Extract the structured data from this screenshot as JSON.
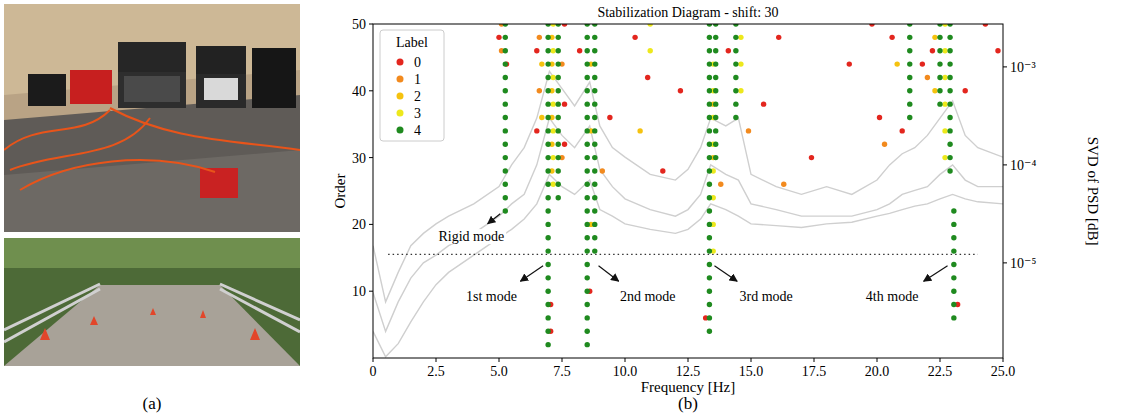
{
  "panel_labels": [
    "(a)",
    "(b)"
  ],
  "chart_data": {
    "type": "scatter",
    "title": "Stabilization Diagram - shift: 30",
    "xlabel": "Frequency [Hz]",
    "ylabel": "Order",
    "y2label": "SVD of PSD [dB]",
    "xlim": [
      0,
      25
    ],
    "ylim": [
      0,
      50
    ],
    "y2lim": [
      1.07e-06,
      0.00274
    ],
    "xticks": [
      0,
      2.5,
      {
        "value": 5,
        "label": "5.0"
      },
      7.5,
      {
        "value": 10,
        "label": "10.0"
      },
      12.5,
      {
        "value": 15,
        "label": "15.0"
      },
      17.5,
      {
        "value": 20,
        "label": "20.0"
      },
      22.5,
      {
        "value": 25,
        "label": "25.0"
      }
    ],
    "yticks": [
      10,
      20,
      30,
      40,
      50
    ],
    "y2ticks": [
      {
        "value": 1e-05,
        "label": "10⁻⁵"
      },
      {
        "value": 0.0001,
        "label": "10⁻⁴"
      },
      {
        "value": 0.001,
        "label": "10⁻³"
      }
    ],
    "log": "y2",
    "grid": false,
    "legend": "upper left",
    "legend_title": "Label",
    "annotations": [
      "Rigid mode",
      "1st mode",
      "2nd mode",
      "3rd mode",
      "4th mode"
    ],
    "hline": {
      "y": 15.5,
      "x": [
        0.6,
        24.0
      ],
      "line_style": "dotted"
    },
    "series": [
      {
        "name": "0",
        "color": "#e3261e",
        "marker": "circle",
        "x": [
          5.0,
          5.3,
          6.5,
          6.5,
          7.05,
          7.05,
          7.6,
          7.6,
          7.6,
          8.2,
          8.6,
          9.4,
          10.4,
          10.9,
          11.5,
          12.2,
          13.2,
          14.1,
          15.5,
          16.1,
          17.4,
          18.9,
          19.8,
          20.1,
          20.6,
          21.0,
          21.8,
          22.2,
          23.2,
          23.5,
          24.3,
          24.8
        ],
        "values": [
          48,
          44,
          34,
          46,
          4,
          8,
          32,
          38,
          50,
          46,
          10,
          36,
          48,
          42,
          28,
          40,
          6,
          46,
          38,
          48,
          30,
          44,
          50,
          36,
          48,
          34,
          44,
          46,
          8,
          40,
          50,
          46
        ]
      },
      {
        "name": "1",
        "color": "#f28a1e",
        "marker": "circle",
        "x": [
          5.1,
          5.1,
          6.6,
          6.6,
          7.5,
          7.5,
          9.1,
          13.8,
          14.9,
          16.3,
          20.3,
          22.0
        ],
        "values": [
          46,
          50,
          40,
          48,
          30,
          44,
          28,
          26,
          34,
          26,
          32,
          42
        ]
      },
      {
        "name": "2",
        "color": "#f5c20f",
        "marker": "circle",
        "x": [
          6.7,
          6.7,
          7.1,
          7.1,
          7.1,
          7.1,
          7.1,
          7.1,
          8.65,
          8.65,
          8.65,
          10.6,
          13.5,
          13.5,
          20.8,
          22.3,
          22.3
        ],
        "values": [
          36,
          44,
          28,
          32,
          36,
          40,
          44,
          48,
          20,
          34,
          44,
          34,
          30,
          38,
          44,
          40,
          48
        ]
      },
      {
        "name": "3",
        "color": "#ede81c",
        "marker": "circle",
        "x": [
          7.15,
          7.15,
          7.15,
          7.15,
          7.15,
          7.15,
          7.15,
          11.0,
          11.0,
          13.5,
          13.5,
          13.5,
          13.5,
          13.5,
          13.5,
          13.5,
          13.5,
          14.6,
          14.6,
          14.6,
          22.7,
          22.7,
          22.7,
          22.7,
          22.7,
          22.7
        ],
        "values": [
          26,
          30,
          34,
          38,
          42,
          46,
          50,
          46,
          50,
          16,
          20,
          24,
          28,
          32,
          36,
          40,
          44,
          40,
          44,
          48,
          30,
          34,
          38,
          42,
          46,
          50
        ]
      },
      {
        "name": "4",
        "color": "#1f8a1f",
        "marker": "circle",
        "x": [
          5.25,
          5.25,
          5.25,
          5.25,
          5.25,
          5.25,
          5.25,
          5.25,
          5.25,
          5.25,
          5.25,
          5.25,
          5.25,
          5.25,
          5.25,
          6.95,
          6.95,
          6.95,
          6.95,
          6.95,
          6.95,
          6.95,
          6.95,
          6.95,
          6.95,
          6.95,
          6.95,
          6.95,
          6.95,
          6.95,
          6.95,
          6.95,
          6.95,
          6.95,
          6.95,
          6.95,
          6.95,
          6.95,
          6.95,
          6.95,
          7.35,
          7.35,
          7.35,
          7.35,
          7.35,
          7.35,
          7.35,
          7.35,
          7.35,
          7.35,
          7.35,
          7.35,
          7.35,
          7.35,
          8.5,
          8.5,
          8.5,
          8.5,
          8.5,
          8.5,
          8.5,
          8.5,
          8.5,
          8.5,
          8.5,
          8.5,
          8.5,
          8.5,
          8.5,
          8.5,
          8.5,
          8.5,
          8.5,
          8.5,
          8.5,
          8.5,
          8.5,
          8.5,
          8.5,
          8.8,
          8.8,
          8.8,
          8.8,
          8.8,
          8.8,
          8.8,
          8.8,
          8.8,
          8.8,
          8.8,
          8.8,
          8.8,
          8.8,
          8.8,
          8.8,
          8.8,
          8.8,
          13.35,
          13.35,
          13.35,
          13.35,
          13.35,
          13.35,
          13.35,
          13.35,
          13.35,
          13.35,
          13.35,
          13.35,
          13.35,
          13.35,
          13.35,
          13.35,
          13.35,
          13.35,
          13.35,
          13.35,
          13.35,
          13.35,
          13.35,
          13.35,
          13.6,
          13.6,
          13.6,
          13.6,
          13.6,
          13.6,
          13.6,
          13.6,
          13.6,
          13.6,
          13.6,
          14.4,
          14.4,
          14.4,
          14.4,
          14.4,
          14.4,
          14.4,
          14.4,
          21.3,
          21.3,
          21.3,
          21.3,
          21.3,
          21.3,
          21.3,
          21.3,
          22.5,
          22.5,
          22.5,
          22.5,
          22.5,
          22.5,
          22.5,
          23.05,
          23.05,
          23.05,
          23.05,
          23.05,
          23.05,
          23.05,
          23.05,
          23.05,
          22.9,
          22.9,
          22.9,
          22.9,
          22.9,
          22.9,
          22.9,
          22.9,
          22.9,
          22.9,
          22.9,
          22.9
        ],
        "values": [
          22,
          24,
          26,
          28,
          30,
          32,
          34,
          36,
          38,
          40,
          42,
          44,
          46,
          48,
          50,
          2,
          4,
          6,
          8,
          10,
          12,
          14,
          16,
          18,
          20,
          22,
          24,
          26,
          28,
          30,
          32,
          34,
          36,
          38,
          40,
          42,
          44,
          46,
          48,
          50,
          24,
          26,
          28,
          30,
          32,
          34,
          36,
          38,
          40,
          42,
          44,
          46,
          48,
          50,
          2,
          4,
          6,
          8,
          10,
          12,
          14,
          16,
          18,
          20,
          22,
          24,
          26,
          28,
          30,
          32,
          34,
          36,
          38,
          40,
          42,
          44,
          46,
          48,
          50,
          16,
          18,
          20,
          22,
          24,
          26,
          28,
          30,
          32,
          34,
          36,
          38,
          40,
          42,
          44,
          46,
          48,
          50,
          4,
          6,
          8,
          10,
          12,
          14,
          16,
          18,
          20,
          22,
          24,
          26,
          28,
          30,
          32,
          34,
          36,
          38,
          40,
          42,
          44,
          46,
          48,
          50,
          30,
          32,
          34,
          36,
          38,
          40,
          42,
          44,
          46,
          48,
          50,
          36,
          38,
          40,
          42,
          44,
          46,
          48,
          50,
          36,
          38,
          40,
          42,
          44,
          46,
          48,
          50,
          38,
          40,
          42,
          44,
          46,
          48,
          50,
          6,
          8,
          10,
          12,
          14,
          16,
          18,
          20,
          22,
          28,
          30,
          32,
          34,
          36,
          38,
          40,
          42,
          44,
          46,
          48,
          50
        ]
      },
      {
        "type": "line",
        "axis": "y2",
        "color": "#cfcfcf",
        "line_style": "solid",
        "x": [
          0,
          0.5,
          1,
          1.5,
          2,
          2.5,
          3,
          4,
          5,
          5.5,
          6,
          6.5,
          7,
          7.5,
          8,
          8.6,
          9,
          9.5,
          10,
          11,
          12,
          12.5,
          13,
          13.4,
          14,
          14.5,
          15,
          16,
          17,
          18,
          19,
          20,
          20.5,
          21,
          21.5,
          22,
          22.5,
          23,
          23.5,
          24,
          25
        ],
        "values": [
          1.5e-05,
          4e-06,
          8e-06,
          1.5e-05,
          2e-05,
          2.5e-05,
          3e-05,
          4e-05,
          6e-05,
          0.0001,
          0.00015,
          0.0003,
          0.0009,
          0.0006,
          0.0004,
          0.0007,
          0.00025,
          0.00015,
          0.00012,
          8e-05,
          7e-05,
          9e-05,
          0.00015,
          0.0003,
          0.00025,
          0.0003,
          8e-05,
          6e-05,
          5e-05,
          6e-05,
          5e-05,
          7e-05,
          0.0001,
          0.00013,
          0.00015,
          0.0002,
          0.0003,
          0.00045,
          0.0002,
          0.00015,
          0.00012
        ]
      },
      {
        "type": "line",
        "axis": "y2",
        "color": "#cfcfcf",
        "line_style": "solid",
        "x": [
          0,
          0.5,
          1,
          1.5,
          2,
          2.5,
          3,
          4,
          5,
          5.5,
          6,
          6.5,
          7,
          7.5,
          8,
          8.6,
          9,
          9.5,
          10,
          11,
          12,
          12.5,
          13,
          13.4,
          14,
          14.5,
          15,
          16,
          17,
          18,
          19,
          20,
          20.5,
          21,
          21.5,
          22,
          22.5,
          23,
          23.5,
          24,
          25
        ],
        "values": [
          5e-06,
          2e-06,
          4e-06,
          7e-06,
          1e-05,
          1.2e-05,
          1.5e-05,
          2e-05,
          3e-05,
          4e-05,
          5e-05,
          0.0001,
          0.0003,
          0.0002,
          0.00015,
          0.00025,
          9e-05,
          6e-05,
          4.5e-05,
          3.5e-05,
          3e-05,
          3.5e-05,
          5e-05,
          0.0001,
          8e-05,
          7e-05,
          4e-05,
          3.5e-05,
          3e-05,
          3e-05,
          3e-05,
          3.5e-05,
          4e-05,
          5e-05,
          5.5e-05,
          6e-05,
          8e-05,
          0.0001,
          7e-05,
          6e-05,
          6e-05
        ]
      },
      {
        "type": "line",
        "axis": "y2",
        "color": "#cfcfcf",
        "line_style": "solid",
        "x": [
          0,
          0.5,
          1,
          1.5,
          2,
          2.5,
          3,
          4,
          5,
          5.5,
          6,
          6.5,
          7,
          7.5,
          8,
          8.6,
          9,
          9.5,
          10,
          11,
          12,
          12.5,
          13,
          13.4,
          14,
          14.5,
          15,
          16,
          17,
          18,
          19,
          20,
          20.5,
          21,
          21.5,
          22,
          22.5,
          23,
          23.5,
          24,
          25
        ],
        "values": [
          2e-06,
          1.1e-06,
          1.5e-06,
          2.5e-06,
          4e-06,
          6e-06,
          8e-06,
          1.2e-05,
          1.8e-05,
          2.2e-05,
          2.8e-05,
          4e-05,
          8e-05,
          6e-05,
          5e-05,
          7e-05,
          3.5e-05,
          3e-05,
          2.5e-05,
          2.2e-05,
          2e-05,
          2.2e-05,
          2.8e-05,
          4e-05,
          3.5e-05,
          3e-05,
          2.5e-05,
          2.4e-05,
          2.3e-05,
          2.5e-05,
          2.6e-05,
          3e-05,
          3.2e-05,
          3.5e-05,
          3.8e-05,
          4e-05,
          4.5e-05,
          5e-05,
          4.5e-05,
          4.2e-05,
          4e-05
        ]
      }
    ]
  }
}
